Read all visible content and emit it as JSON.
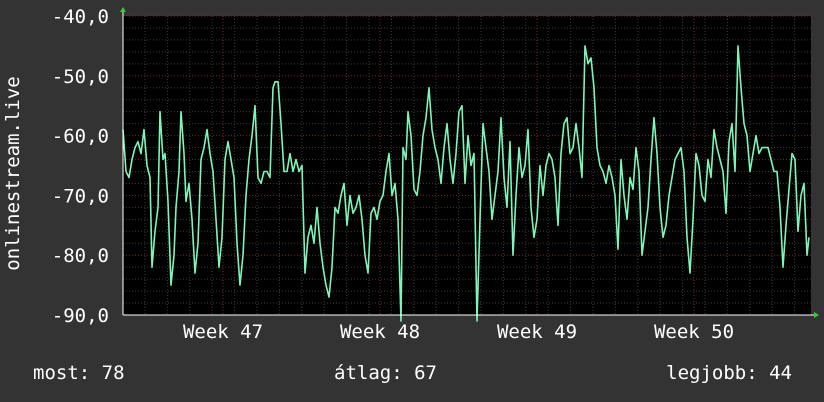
{
  "chart_data": {
    "type": "line",
    "ylabel": "onlinestream.live",
    "ylim": [
      -90,
      -40
    ],
    "y_ticks": [
      {
        "value": -40,
        "label": "-40,0"
      },
      {
        "value": -50,
        "label": "-50,0"
      },
      {
        "value": -60,
        "label": "-60,0"
      },
      {
        "value": -70,
        "label": "-70,0"
      },
      {
        "value": -80,
        "label": "-80,0"
      },
      {
        "value": -90,
        "label": "-90,0"
      }
    ],
    "xlim": [
      0,
      688
    ],
    "x_ticks": [
      {
        "value": 100,
        "label": "Week 47"
      },
      {
        "value": 257,
        "label": "Week 48"
      },
      {
        "value": 414,
        "label": "Week 49"
      },
      {
        "value": 571,
        "label": "Week 50"
      }
    ],
    "grid": true,
    "line_color": "#7ff5b8",
    "series": [
      {
        "values": [
          [
            0,
            -59
          ],
          [
            3,
            -66
          ],
          [
            6,
            -67
          ],
          [
            9,
            -64
          ],
          [
            12,
            -62
          ],
          [
            15,
            -61
          ],
          [
            18,
            -63
          ],
          [
            21,
            -59
          ],
          [
            24,
            -65
          ],
          [
            27,
            -67
          ],
          [
            29,
            -82
          ],
          [
            32,
            -76
          ],
          [
            35,
            -72
          ],
          [
            37,
            -56
          ],
          [
            40,
            -64
          ],
          [
            42,
            -63
          ],
          [
            45,
            -71
          ],
          [
            48,
            -85
          ],
          [
            51,
            -80
          ],
          [
            53,
            -72
          ],
          [
            56,
            -66
          ],
          [
            58,
            -56
          ],
          [
            61,
            -63
          ],
          [
            63,
            -71
          ],
          [
            66,
            -68
          ],
          [
            69,
            -74
          ],
          [
            72,
            -83
          ],
          [
            75,
            -78
          ],
          [
            78,
            -64
          ],
          [
            81,
            -62
          ],
          [
            84,
            -59
          ],
          [
            87,
            -63
          ],
          [
            90,
            -66
          ],
          [
            93,
            -74
          ],
          [
            96,
            -82
          ],
          [
            99,
            -77
          ],
          [
            102,
            -64
          ],
          [
            105,
            -61
          ],
          [
            108,
            -64
          ],
          [
            111,
            -67
          ],
          [
            114,
            -78
          ],
          [
            117,
            -85
          ],
          [
            120,
            -80
          ],
          [
            123,
            -70
          ],
          [
            126,
            -64
          ],
          [
            129,
            -60
          ],
          [
            132,
            -55
          ],
          [
            135,
            -67
          ],
          [
            138,
            -68
          ],
          [
            141,
            -66
          ],
          [
            144,
            -66
          ],
          [
            147,
            -67
          ],
          [
            150,
            -52
          ],
          [
            152,
            -51
          ],
          [
            155,
            -51
          ],
          [
            158,
            -58
          ],
          [
            161,
            -66
          ],
          [
            164,
            -66
          ],
          [
            167,
            -63
          ],
          [
            170,
            -66
          ],
          [
            173,
            -64
          ],
          [
            176,
            -66
          ],
          [
            179,
            -65
          ],
          [
            182,
            -83
          ],
          [
            185,
            -77
          ],
          [
            188,
            -75
          ],
          [
            191,
            -78
          ],
          [
            194,
            -72
          ],
          [
            197,
            -78
          ],
          [
            200,
            -82
          ],
          [
            203,
            -85
          ],
          [
            206,
            -87
          ],
          [
            209,
            -82
          ],
          [
            212,
            -72
          ],
          [
            215,
            -73
          ],
          [
            218,
            -70
          ],
          [
            221,
            -68
          ],
          [
            224,
            -75
          ],
          [
            227,
            -70
          ],
          [
            230,
            -73
          ],
          [
            233,
            -72
          ],
          [
            236,
            -70
          ],
          [
            239,
            -74
          ],
          [
            242,
            -80
          ],
          [
            245,
            -83
          ],
          [
            248,
            -73
          ],
          [
            251,
            -72
          ],
          [
            254,
            -74
          ],
          [
            257,
            -71
          ],
          [
            260,
            -70
          ],
          [
            263,
            -66
          ],
          [
            266,
            -63
          ],
          [
            269,
            -70
          ],
          [
            272,
            -68
          ],
          [
            275,
            -74
          ],
          [
            278,
            -91
          ],
          [
            280,
            -62
          ],
          [
            283,
            -64
          ],
          [
            285,
            -56
          ],
          [
            288,
            -60
          ],
          [
            291,
            -69
          ],
          [
            294,
            -70
          ],
          [
            297,
            -66
          ],
          [
            300,
            -60
          ],
          [
            303,
            -57
          ],
          [
            306,
            -52
          ],
          [
            309,
            -59
          ],
          [
            312,
            -62
          ],
          [
            315,
            -64
          ],
          [
            318,
            -68
          ],
          [
            321,
            -62
          ],
          [
            324,
            -58
          ],
          [
            327,
            -64
          ],
          [
            330,
            -68
          ],
          [
            333,
            -63
          ],
          [
            336,
            -56
          ],
          [
            339,
            -55
          ],
          [
            342,
            -68
          ],
          [
            345,
            -60
          ],
          [
            348,
            -65
          ],
          [
            351,
            -63
          ],
          [
            354,
            -91
          ],
          [
            357,
            -74
          ],
          [
            360,
            -58
          ],
          [
            363,
            -62
          ],
          [
            366,
            -66
          ],
          [
            369,
            -74
          ],
          [
            372,
            -70
          ],
          [
            375,
            -66
          ],
          [
            378,
            -57
          ],
          [
            381,
            -67
          ],
          [
            384,
            -72
          ],
          [
            387,
            -61
          ],
          [
            390,
            -80
          ],
          [
            393,
            -70
          ],
          [
            396,
            -62
          ],
          [
            399,
            -67
          ],
          [
            402,
            -65
          ],
          [
            405,
            -59
          ],
          [
            408,
            -72
          ],
          [
            411,
            -77
          ],
          [
            414,
            -74
          ],
          [
            417,
            -65
          ],
          [
            420,
            -70
          ],
          [
            423,
            -65
          ],
          [
            426,
            -63
          ],
          [
            429,
            -64
          ],
          [
            432,
            -67
          ],
          [
            435,
            -75
          ],
          [
            438,
            -63
          ],
          [
            441,
            -58
          ],
          [
            444,
            -57
          ],
          [
            447,
            -63
          ],
          [
            450,
            -62
          ],
          [
            453,
            -58
          ],
          [
            456,
            -62
          ],
          [
            459,
            -67
          ],
          [
            462,
            -45
          ],
          [
            465,
            -48
          ],
          [
            468,
            -47
          ],
          [
            471,
            -52
          ],
          [
            474,
            -62
          ],
          [
            477,
            -65
          ],
          [
            480,
            -66
          ],
          [
            483,
            -68
          ],
          [
            486,
            -65
          ],
          [
            489,
            -67
          ],
          [
            492,
            -70
          ],
          [
            495,
            -79
          ],
          [
            498,
            -64
          ],
          [
            501,
            -70
          ],
          [
            504,
            -74
          ],
          [
            507,
            -67
          ],
          [
            510,
            -69
          ],
          [
            513,
            -62
          ],
          [
            516,
            -66
          ],
          [
            519,
            -80
          ],
          [
            522,
            -76
          ],
          [
            525,
            -72
          ],
          [
            528,
            -64
          ],
          [
            531,
            -57
          ],
          [
            534,
            -63
          ],
          [
            537,
            -72
          ],
          [
            540,
            -77
          ],
          [
            543,
            -75
          ],
          [
            546,
            -70
          ],
          [
            549,
            -67
          ],
          [
            552,
            -64
          ],
          [
            555,
            -63
          ],
          [
            558,
            -62
          ],
          [
            561,
            -66
          ],
          [
            564,
            -77
          ],
          [
            567,
            -83
          ],
          [
            570,
            -74
          ],
          [
            573,
            -63
          ],
          [
            576,
            -65
          ],
          [
            579,
            -70
          ],
          [
            582,
            -71
          ],
          [
            585,
            -64
          ],
          [
            588,
            -67
          ],
          [
            591,
            -59
          ],
          [
            594,
            -62
          ],
          [
            597,
            -64
          ],
          [
            600,
            -66
          ],
          [
            603,
            -73
          ],
          [
            606,
            -61
          ],
          [
            609,
            -58
          ],
          [
            612,
            -66
          ],
          [
            615,
            -45
          ],
          [
            618,
            -52
          ],
          [
            621,
            -58
          ],
          [
            624,
            -60
          ],
          [
            627,
            -66
          ],
          [
            630,
            -63
          ],
          [
            633,
            -60
          ],
          [
            636,
            -63
          ],
          [
            639,
            -62
          ],
          [
            642,
            -62
          ],
          [
            645,
            -62
          ],
          [
            648,
            -64
          ],
          [
            651,
            -66
          ],
          [
            654,
            -66
          ],
          [
            657,
            -72
          ],
          [
            660,
            -82
          ],
          [
            663,
            -75
          ],
          [
            666,
            -69
          ],
          [
            669,
            -63
          ],
          [
            672,
            -64
          ],
          [
            675,
            -76
          ],
          [
            678,
            -70
          ],
          [
            681,
            -68
          ],
          [
            684,
            -80
          ],
          [
            686,
            -77
          ]
        ]
      }
    ]
  },
  "stats": {
    "now": "most: 78",
    "avg": "átlag: 67",
    "best": "legjobb: 44"
  }
}
